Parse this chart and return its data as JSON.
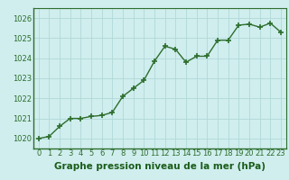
{
  "x": [
    0,
    1,
    2,
    3,
    4,
    5,
    6,
    7,
    8,
    9,
    10,
    11,
    12,
    13,
    14,
    15,
    16,
    17,
    18,
    19,
    20,
    21,
    22,
    23
  ],
  "y": [
    1020.0,
    1020.1,
    1020.6,
    1021.0,
    1021.0,
    1021.1,
    1021.15,
    1021.3,
    1022.1,
    1022.5,
    1022.9,
    1023.85,
    1024.6,
    1024.45,
    1023.8,
    1024.1,
    1024.1,
    1024.9,
    1024.9,
    1025.65,
    1025.7,
    1025.55,
    1025.75,
    1025.3
  ],
  "line_color": "#2d6e2d",
  "marker": "+",
  "marker_size": 4,
  "bg_color": "#d0eeee",
  "grid_color": "#b0d8d8",
  "ylim_min": 1019.5,
  "ylim_max": 1026.5,
  "xlim_min": -0.5,
  "xlim_max": 23.5,
  "yticks": [
    1020,
    1021,
    1022,
    1023,
    1024,
    1025,
    1026
  ],
  "xticks": [
    0,
    1,
    2,
    3,
    4,
    5,
    6,
    7,
    8,
    9,
    10,
    11,
    12,
    13,
    14,
    15,
    16,
    17,
    18,
    19,
    20,
    21,
    22,
    23
  ],
  "xlabel": "Graphe pression niveau de la mer (hPa)",
  "xlabel_color": "#1a5c1a",
  "xlabel_fontsize": 7.5,
  "tick_fontsize": 6,
  "tick_color": "#2d6e2d",
  "axis_color": "#2d6e2d",
  "linewidth": 1.0
}
